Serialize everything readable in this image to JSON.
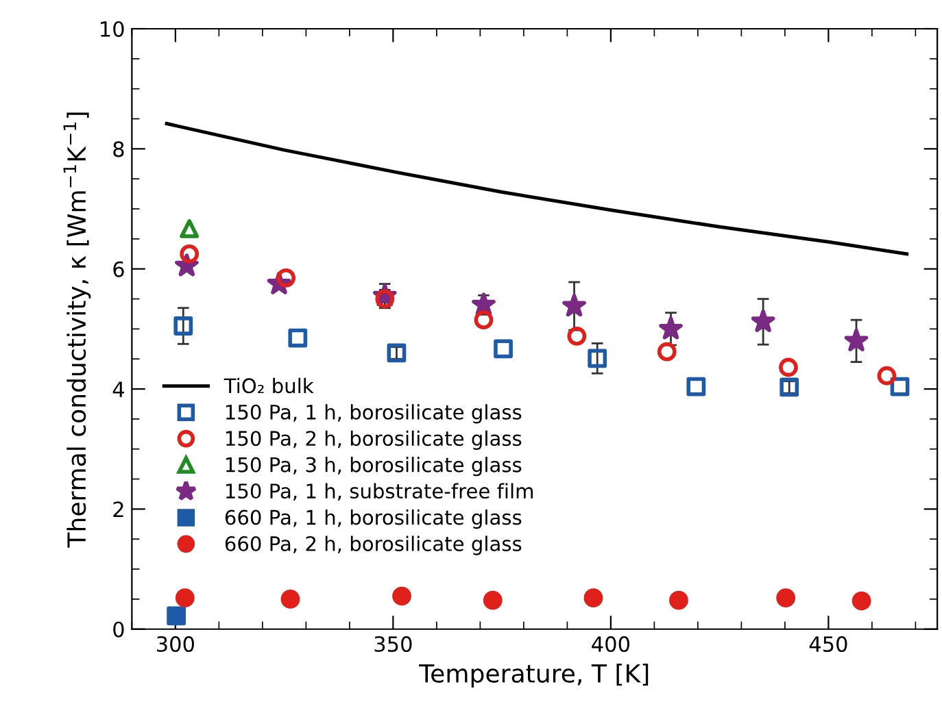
{
  "chart_data": {
    "type": "scatter",
    "xlabel": "Temperature, T [K]",
    "ylabel": "Thermal conductivity, κ [Wm$^{−1}$K$^{−1}$]",
    "xlim": [
      290,
      475
    ],
    "xticks": [
      300,
      350,
      400,
      450
    ],
    "ylim": [
      0,
      10
    ],
    "yticks": [
      0,
      2,
      4,
      6,
      8,
      10
    ],
    "grid": false,
    "legend": "bottom left",
    "series": [
      {
        "name": "TiO₂ bulk",
        "type": "line",
        "color": "#000000",
        "marker": "none",
        "line_style": "solid",
        "x": [
          298,
          325,
          350,
          375,
          400,
          425,
          450,
          468
        ],
        "values": [
          8.42,
          7.98,
          7.62,
          7.28,
          6.98,
          6.7,
          6.45,
          6.25
        ]
      },
      {
        "name": "150 Pa, 1 h, borosilicate glass",
        "color": "#1f5aa6",
        "marker": "square",
        "x": [
          301.8,
          328.1,
          350.8,
          375.3,
          396.9,
          419.6,
          441,
          466.4
        ],
        "values": [
          5.05,
          4.85,
          4.6,
          4.67,
          4.51,
          4.04,
          4.03,
          4.04
        ],
        "errors": [
          0.3,
          null,
          0.1,
          null,
          0.25,
          null,
          0.1,
          null
        ]
      },
      {
        "name": "150 Pa, 2 h, borosilicate glass",
        "color": "#e0201b",
        "marker": "circle",
        "x": [
          303.2,
          325.4,
          348.1,
          370.8,
          392.2,
          412.9,
          440.8,
          463.4
        ],
        "values": [
          6.25,
          5.85,
          5.5,
          5.15,
          4.88,
          4.62,
          4.36,
          4.22
        ],
        "errors": [
          null,
          null,
          0.15,
          null,
          null,
          null,
          null,
          null
        ]
      },
      {
        "name": "150 Pa, 3 h, borosilicate glass",
        "color": "#228b22",
        "marker": "triangle",
        "x": [
          303.2
        ],
        "values": [
          6.67
        ]
      },
      {
        "name": "150 Pa, 1 h, substrate-free film",
        "color": "#7b2a83",
        "marker": "star",
        "x": [
          302.6,
          323.8,
          348.1,
          370.8,
          391.6,
          413.8,
          435,
          456.4
        ],
        "values": [
          6.05,
          5.75,
          5.55,
          5.4,
          5.38,
          5.0,
          5.12,
          4.8
        ],
        "errors": [
          null,
          null,
          0.2,
          0.16,
          0.4,
          0.27,
          0.38,
          0.35
        ]
      },
      {
        "name": "660 Pa, 1 h, borosilicate glass",
        "color": "#1f5aa6",
        "marker": "square",
        "x": [
          300.2
        ],
        "values": [
          0.22
        ]
      },
      {
        "name": "660 Pa, 2 h, borosilicate glass",
        "color": "#e0201b",
        "marker": "circle",
        "x": [
          302.2,
          326.4,
          352,
          372.9,
          396,
          415.6,
          440.2,
          457.6
        ],
        "values": [
          0.52,
          0.5,
          0.55,
          0.48,
          0.52,
          0.48,
          0.52,
          0.47
        ]
      }
    ]
  }
}
